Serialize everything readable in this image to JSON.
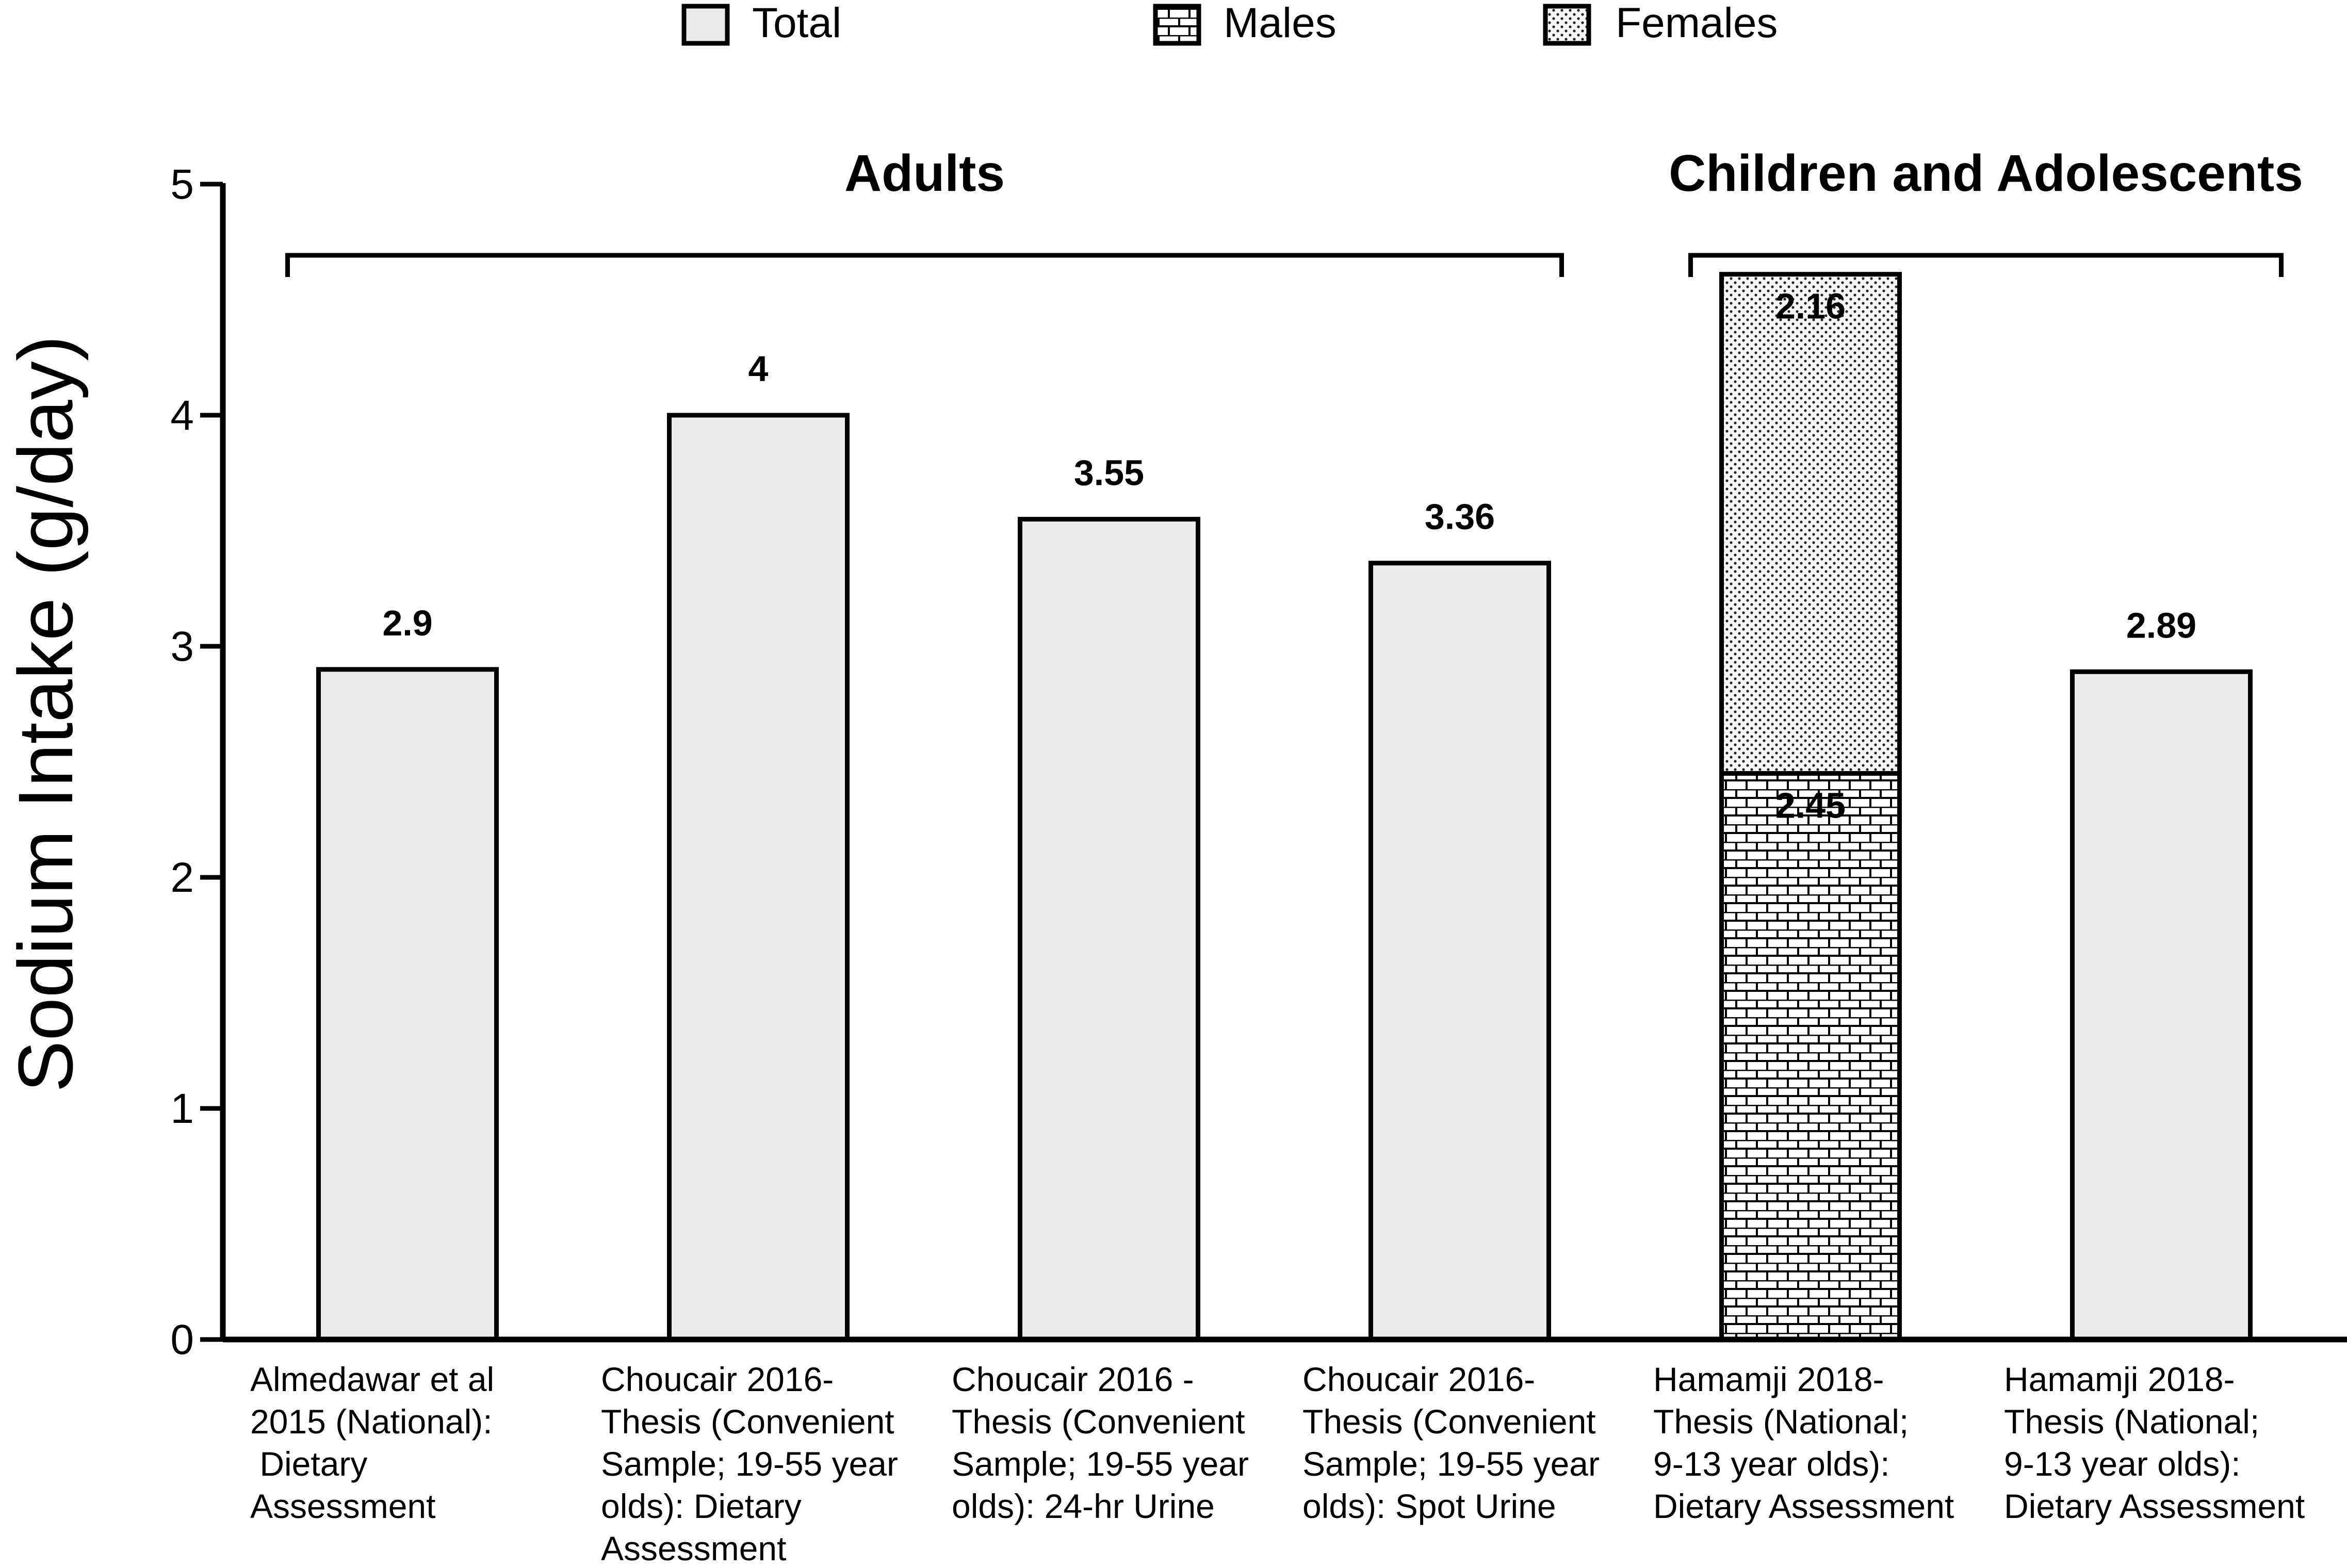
{
  "legend": {
    "items": [
      {
        "label": "Total",
        "pattern": "plain"
      },
      {
        "label": "Males",
        "pattern": "brick"
      },
      {
        "label": "Females",
        "pattern": "dots"
      }
    ]
  },
  "groups": [
    {
      "label": "Adults",
      "bar_start": 0,
      "bar_end": 3
    },
    {
      "label": "Children and Adolescents",
      "bar_start": 4,
      "bar_end": 5
    }
  ],
  "colors": {
    "bar_fill": "#ebebeb",
    "stroke": "#000000",
    "background": "#ffffff"
  },
  "chart_data": {
    "type": "bar",
    "title": "",
    "xlabel": "",
    "ylabel": "Sodium Intake (g/day)",
    "ylim": [
      0,
      5
    ],
    "yticks": [
      0,
      1,
      2,
      3,
      4,
      5
    ],
    "bars": [
      {
        "label_lines": [
          "Almedawar et al",
          "2015 (National):",
          " Dietary",
          "Assessment"
        ],
        "segments": [
          {
            "series": "Total",
            "value": 2.9,
            "label": "2.9"
          }
        ]
      },
      {
        "label_lines": [
          "Choucair 2016-",
          "Thesis (Convenient",
          "Sample; 19-55 year",
          "olds): Dietary",
          "Assessment"
        ],
        "segments": [
          {
            "series": "Total",
            "value": 4,
            "label": "4"
          }
        ]
      },
      {
        "label_lines": [
          "Choucair 2016 -",
          "Thesis (Convenient",
          "Sample; 19-55 year",
          "olds): 24-hr Urine"
        ],
        "segments": [
          {
            "series": "Total",
            "value": 3.55,
            "label": "3.55"
          }
        ]
      },
      {
        "label_lines": [
          "Choucair 2016-",
          "Thesis (Convenient",
          "Sample; 19-55 year",
          "olds): Spot Urine"
        ],
        "segments": [
          {
            "series": "Total",
            "value": 3.36,
            "label": "3.36"
          }
        ]
      },
      {
        "label_lines": [
          "Hamamji 2018-",
          "Thesis (National;",
          "9-13 year olds):",
          "Dietary Assessment"
        ],
        "segments": [
          {
            "series": "Males",
            "value": 2.45,
            "label": "2.45"
          },
          {
            "series": "Females",
            "value": 2.16,
            "label": "2.16"
          }
        ]
      },
      {
        "label_lines": [
          "Hamamji 2018-",
          "Thesis (National;",
          "9-13 year olds):",
          "Dietary Assessment"
        ],
        "segments": [
          {
            "series": "Total",
            "value": 2.89,
            "label": "2.89"
          }
        ]
      }
    ]
  }
}
